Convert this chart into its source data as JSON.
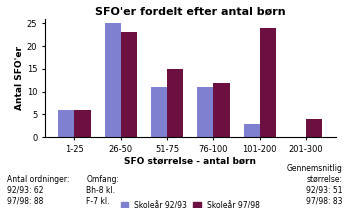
{
  "title": "SFO'er fordelt efter antal børn",
  "xlabel": "SFO størrelse - antal børn",
  "ylabel": "Antal SFO'er",
  "categories": [
    "1-25",
    "26-50",
    "51-75",
    "76-100",
    "101-200",
    "201-300"
  ],
  "series_9293": [
    6,
    25,
    11,
    11,
    3,
    0
  ],
  "series_9798": [
    6,
    23,
    15,
    12,
    24,
    4
  ],
  "color_9293": "#8080d0",
  "color_9798": "#6b1040",
  "ylim": [
    0,
    26
  ],
  "yticks": [
    0,
    5,
    10,
    15,
    20,
    25
  ],
  "legend_9293": "Skoleår 92/93",
  "legend_9798": "Skoleår 97/98",
  "footnote_left": "Antal ordninger:\n92/93: 62\n97/98: 88",
  "footnote_mid": "Omfang:\nBh-8 kl.\nF-7 kl.",
  "footnote_right": "Gennemsnitlig\nstørrelse:\n92/93: 51\n97/98: 83",
  "bar_width": 0.35
}
